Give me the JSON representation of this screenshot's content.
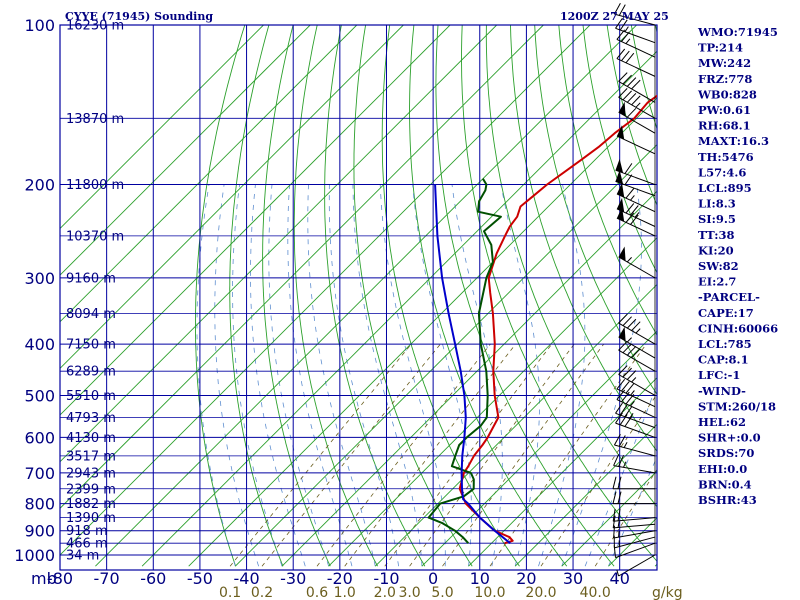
{
  "header": {
    "station": "CYYE (71945) Sounding",
    "time": "1200Z 27 MAY 25"
  },
  "chart_data": {
    "type": "line",
    "title": "CYYE (71945) Sounding",
    "time": "1200Z 27 MAY 25",
    "pressure_unit_label": "mb",
    "mixing_ratio_unit_label": "g/kg",
    "y_axis": {
      "scale": "log",
      "ylim": [
        1000,
        100
      ],
      "ticks": [
        100,
        200,
        300,
        400,
        500,
        600,
        700,
        800,
        900,
        1000
      ]
    },
    "x_axis": {
      "xlim": [
        -80,
        48
      ],
      "ticks": [
        -80,
        -70,
        -60,
        -50,
        -40,
        -30,
        -20,
        -10,
        0,
        10,
        20,
        30,
        40
      ],
      "tick_labels": [
        "-80",
        "-70",
        "-60",
        "-50",
        "-40",
        "-30",
        "-20",
        "-10",
        "0",
        "10",
        "20",
        "30",
        "40"
      ]
    },
    "height_labels": [
      {
        "p": 100,
        "label": "16230 m"
      },
      {
        "p": 150,
        "label": "13870 m"
      },
      {
        "p": 200,
        "label": "11800 m"
      },
      {
        "p": 250,
        "label": "10370 m"
      },
      {
        "p": 300,
        "label": "9160 m"
      },
      {
        "p": 350,
        "label": "8094 m"
      },
      {
        "p": 400,
        "label": "7150 m"
      },
      {
        "p": 450,
        "label": "6289 m"
      },
      {
        "p": 500,
        "label": "5510 m"
      },
      {
        "p": 550,
        "label": "4793 m"
      },
      {
        "p": 600,
        "label": "4130 m"
      },
      {
        "p": 650,
        "label": "3517 m"
      },
      {
        "p": 700,
        "label": "2943 m"
      },
      {
        "p": 750,
        "label": "2399 m"
      },
      {
        "p": 800,
        "label": "1882 m"
      },
      {
        "p": 850,
        "label": "1390 m"
      },
      {
        "p": 900,
        "label": "918 m"
      },
      {
        "p": 950,
        "label": "466 m"
      },
      {
        "p": 1000,
        "label": "34 m"
      }
    ],
    "mixing_ratio_labels": [
      "0.1",
      "0.2",
      "0.6",
      "1.0",
      "2.0",
      "3.0",
      "5.0",
      "10.0",
      "20.0",
      "40.0"
    ],
    "mixing_ratio_values": [
      0.1,
      0.2,
      0.6,
      1.0,
      2.0,
      3.0,
      5.0,
      10.0,
      20.0,
      40.0
    ],
    "series": [
      {
        "key": "temperature",
        "color": "#cc0000",
        "p": [
          950,
          940,
          925,
          900,
          850,
          800,
          750,
          700,
          680,
          650,
          620,
          600,
          550,
          500,
          450,
          400,
          350,
          320,
          300,
          270,
          250,
          240,
          230,
          220,
          210,
          200,
          190,
          180,
          170,
          160,
          150,
          140,
          130,
          120,
          110,
          105,
          100
        ],
        "t": [
          12.8,
          14.0,
          12.5,
          8.0,
          2.0,
          -4.0,
          -8.5,
          -11.0,
          -11.5,
          -12.5,
          -13.0,
          -13.5,
          -15.5,
          -21.0,
          -26.5,
          -32.0,
          -39.0,
          -44.0,
          -47.5,
          -51.0,
          -53.0,
          -54.0,
          -54.5,
          -56.0,
          -55.5,
          -55.0,
          -54.0,
          -53.0,
          -52.0,
          -51.5,
          -50.5,
          -51.0,
          -49.5,
          -52.5,
          -54.0,
          -56.0,
          -55.5
        ]
      },
      {
        "key": "dewpoint",
        "color": "#005000",
        "p": [
          950,
          925,
          900,
          870,
          850,
          800,
          775,
          750,
          720,
          700,
          680,
          650,
          620,
          600,
          570,
          550,
          500,
          450,
          400,
          350,
          300,
          280,
          260,
          245,
          230,
          225,
          215,
          205,
          200,
          195
        ],
        "t": [
          5.0,
          2.5,
          -0.5,
          -5.0,
          -9.0,
          -9.5,
          -6.0,
          -5.5,
          -7.5,
          -9.5,
          -15.0,
          -16.5,
          -18.0,
          -18.0,
          -17.5,
          -18.0,
          -22.5,
          -28.0,
          -35.0,
          -42.0,
          -48.0,
          -50.0,
          -54.0,
          -58.5,
          -58.0,
          -64.0,
          -66.0,
          -67.0,
          -68.0,
          -70.0
        ]
      },
      {
        "key": "parcel",
        "color": "#0000cc",
        "p": [
          950,
          900,
          850,
          800,
          785,
          750,
          700,
          650,
          600,
          550,
          500,
          450,
          400,
          350,
          300,
          250,
          200
        ],
        "t": [
          14.0,
          8.0,
          2.0,
          -3.5,
          -5.5,
          -8.0,
          -11.5,
          -15.0,
          -18.5,
          -22.5,
          -27.5,
          -33.5,
          -40.5,
          -48.5,
          -57.5,
          -67.5,
          -79.0
        ]
      }
    ]
  },
  "wind_profile": [
    {
      "p": 1000,
      "dir": 240,
      "spd": 5
    },
    {
      "p": 950,
      "dir": 250,
      "spd": 10
    },
    {
      "p": 925,
      "dir": 255,
      "spd": 15
    },
    {
      "p": 900,
      "dir": 260,
      "spd": 15
    },
    {
      "p": 875,
      "dir": 265,
      "spd": 15
    },
    {
      "p": 850,
      "dir": 265,
      "spd": 20
    },
    {
      "p": 800,
      "dir": 270,
      "spd": 20
    },
    {
      "p": 750,
      "dir": 270,
      "spd": 20
    },
    {
      "p": 700,
      "dir": 280,
      "spd": 25
    },
    {
      "p": 650,
      "dir": 285,
      "spd": 25
    },
    {
      "p": 600,
      "dir": 290,
      "spd": 30
    },
    {
      "p": 575,
      "dir": 290,
      "spd": 35
    },
    {
      "p": 550,
      "dir": 295,
      "spd": 35
    },
    {
      "p": 525,
      "dir": 295,
      "spd": 35
    },
    {
      "p": 500,
      "dir": 300,
      "spd": 35
    },
    {
      "p": 450,
      "dir": 300,
      "spd": 40
    },
    {
      "p": 425,
      "dir": 300,
      "spd": 55
    },
    {
      "p": 400,
      "dir": 300,
      "spd": 45
    },
    {
      "p": 300,
      "dir": 300,
      "spd": 55
    },
    {
      "p": 250,
      "dir": 295,
      "spd": 70
    },
    {
      "p": 240,
      "dir": 295,
      "spd": 75
    },
    {
      "p": 225,
      "dir": 295,
      "spd": 65
    },
    {
      "p": 210,
      "dir": 290,
      "spd": 60
    },
    {
      "p": 200,
      "dir": 290,
      "spd": 60
    },
    {
      "p": 175,
      "dir": 295,
      "spd": 50
    },
    {
      "p": 160,
      "dir": 300,
      "spd": 60
    },
    {
      "p": 150,
      "dir": 300,
      "spd": 45
    },
    {
      "p": 140,
      "dir": 300,
      "spd": 40
    },
    {
      "p": 125,
      "dir": 295,
      "spd": 30
    },
    {
      "p": 115,
      "dir": 295,
      "spd": 25
    },
    {
      "p": 108,
      "dir": 290,
      "spd": 25
    },
    {
      "p": 100,
      "dir": 285,
      "spd": 20
    }
  ],
  "indices": [
    "WMO:71945",
    "TP:214",
    "MW:242",
    "FRZ:778",
    "WB0:828",
    "PW:0.61",
    "RH:68.1",
    "MAXT:16.3",
    "TH:5476",
    "L57:4.6",
    "LCL:895",
    "LI:8.3",
    "SI:9.5",
    "TT:38",
    "KI:20",
    "SW:82",
    "EI:2.7",
    "-PARCEL-",
    "CAPE:17",
    "CINH:60066",
    "LCL:785",
    "CAP:8.1",
    "LFC:-1",
    "-WIND-",
    "STM:260/18",
    "HEL:62",
    "SHR+:0.0",
    "SRDS:70",
    "EHI:0.0",
    "BRN:0.4",
    "BSHR:43"
  ]
}
